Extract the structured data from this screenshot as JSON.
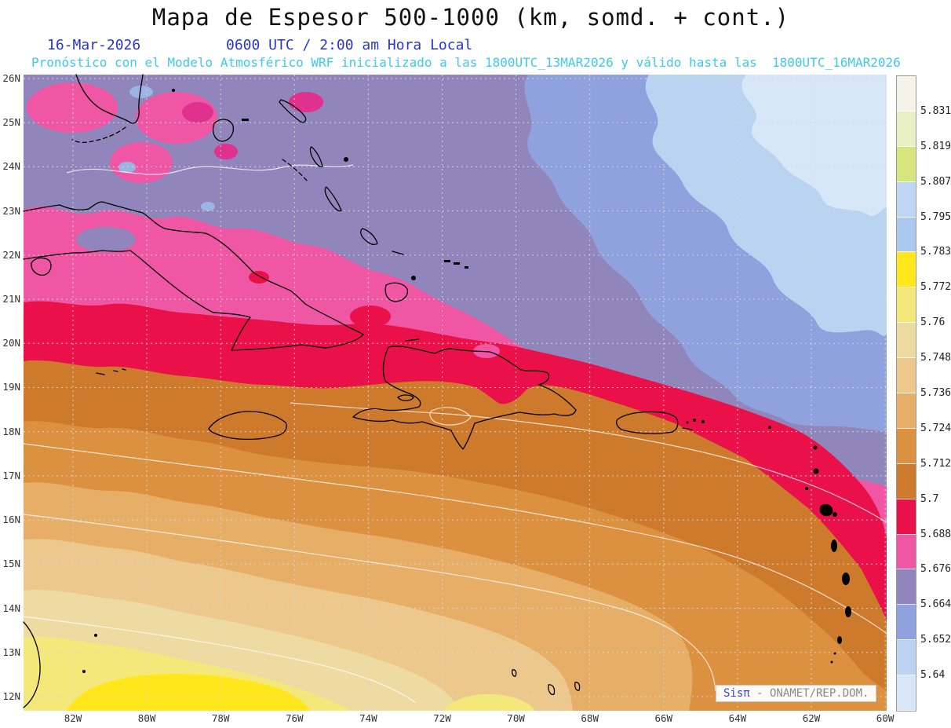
{
  "header": {
    "title": "Mapa de Espesor 500-1000 (km, somd. + cont.)",
    "date": "16-Mar-2026",
    "local_time": "0600 UTC / 2:00 am Hora Local",
    "forecast_note": "Pronóstico con el Modelo Atmosférico WRF inicializado a las 1800UTC_13MAR2026 y válido hasta las  1800UTC_16MAR2026"
  },
  "watermark": {
    "brand": "Sisπ",
    "text": " - ONAMET/REP.DOM."
  },
  "axes": {
    "lat_ticks": [
      "26N",
      "25N",
      "24N",
      "23N",
      "22N",
      "21N",
      "20N",
      "19N",
      "18N",
      "17N",
      "16N",
      "15N",
      "14N",
      "13N",
      "12N"
    ],
    "lon_ticks": [
      "82W",
      "80W",
      "78W",
      "76W",
      "74W",
      "72W",
      "70W",
      "68W",
      "66W",
      "64W",
      "62W",
      "60W"
    ]
  },
  "palette": {
    "lightest_blue": "#d7e7f8",
    "light_blue": "#b9d3f1",
    "periwinkle": "#8fa2de",
    "slate_purple": "#9186bb",
    "pink": "#ef57a5",
    "magenta": "#e0318e",
    "red": "#ea1049",
    "dark_orange": "#ce7a2d",
    "orange": "#dc9140",
    "light_orange": "#e6ae66",
    "pale_tan": "#ecc88d",
    "khaki": "#eedba1",
    "pale_yellow": "#f5e87b",
    "yellow": "#ffe71c",
    "spot_blue": "#9cb4e4",
    "white_seg": "#f4f3ea",
    "pale_green": "#e9f0c6",
    "yellow_green": "#d6e67c",
    "cb_blue_a": "#bdd7f3",
    "cb_blue_b": "#a9c9ed"
  },
  "colorbar": {
    "boundary_labels": [
      "5.831",
      "5.819",
      "5.807",
      "5.795",
      "5.783",
      "5.772",
      "5.76",
      "5.748",
      "5.736",
      "5.724",
      "5.712",
      "5.7",
      "5.688",
      "5.676",
      "5.664",
      "5.652",
      "5.64"
    ],
    "segment_colors_top_to_bottom": [
      "#f4f3ea",
      "#e9f0c6",
      "#d6e67c",
      "#bdd7f3",
      "#a9c9ed",
      "#ffe71c",
      "#f5e87b",
      "#eedba1",
      "#ecc88d",
      "#e6ae66",
      "#dc9140",
      "#ce7a2d",
      "#ea1049",
      "#ef57a5",
      "#9186bb",
      "#8fa2de",
      "#b9d3f1",
      "#d7e7f8"
    ],
    "segment_names": [
      "white",
      "pale-green",
      "yellow-green",
      "light-blue",
      "light-blue-2",
      "yellow",
      "pale-yellow",
      "khaki",
      "pale-tan",
      "light-orange",
      "orange",
      "dark-orange",
      "red",
      "pink",
      "slate-purple",
      "periwinkle",
      "light-blue-3",
      "lightest-blue"
    ]
  },
  "chart_data": {
    "type": "filled_contour_map",
    "title": "Mapa de Espesor 500-1000 (km, somd. + cont.)",
    "variable": "Espesor (thickness) 500-1000 hPa, km",
    "valid_time": "16-Mar-2026 0600 UTC / 2:00 am Hora Local",
    "model_note": "WRF inicializado 1800UTC_13MAR2026, válido hasta 1800UTC_16MAR2026",
    "lat_ticks": [
      "26N",
      "25N",
      "24N",
      "23N",
      "22N",
      "21N",
      "20N",
      "19N",
      "18N",
      "17N",
      "16N",
      "15N",
      "14N",
      "13N",
      "12N"
    ],
    "lon_ticks": [
      "82W",
      "80W",
      "78W",
      "76W",
      "74W",
      "72W",
      "70W",
      "68W",
      "66W",
      "64W",
      "62W",
      "60W"
    ],
    "contour_levels_km": [
      5.64,
      5.652,
      5.664,
      5.676,
      5.688,
      5.7,
      5.712,
      5.724,
      5.736,
      5.748,
      5.76,
      5.772,
      5.783,
      5.795,
      5.807,
      5.819,
      5.831
    ],
    "field_description": "Thickness bands run diagonally NW-SE; values increase from about 5.64 km at the northeast corner (light blue) to above 5.78 km at the southwest corner (yellow). Red band (5.688-5.700) crosses just south of Cuba through the Greater Antilles toward the Lesser Antilles.",
    "bands_northeast_to_southwest": [
      {
        "range": "< 5.64",
        "color": "#d7e7f8"
      },
      {
        "range": "5.64 - 5.652",
        "color": "#b9d3f1"
      },
      {
        "range": "5.652 - 5.664",
        "color": "#8fa2de"
      },
      {
        "range": "5.664 - 5.676",
        "color": "#9186bb"
      },
      {
        "range": "5.676 - 5.688",
        "color": "#ef57a5"
      },
      {
        "range": "5.688 - 5.7",
        "color": "#ea1049"
      },
      {
        "range": "5.7 - 5.712",
        "color": "#ce7a2d"
      },
      {
        "range": "5.712 - 5.724",
        "color": "#dc9140"
      },
      {
        "range": "5.724 - 5.736",
        "color": "#e6ae66"
      },
      {
        "range": "5.736 - 5.748",
        "color": "#ecc88d"
      },
      {
        "range": "5.748 - 5.76",
        "color": "#eedba1"
      },
      {
        "range": "5.76 - 5.772",
        "color": "#f5e87b"
      },
      {
        "range": "5.772 - 5.783",
        "color": "#ffe71c"
      }
    ]
  }
}
